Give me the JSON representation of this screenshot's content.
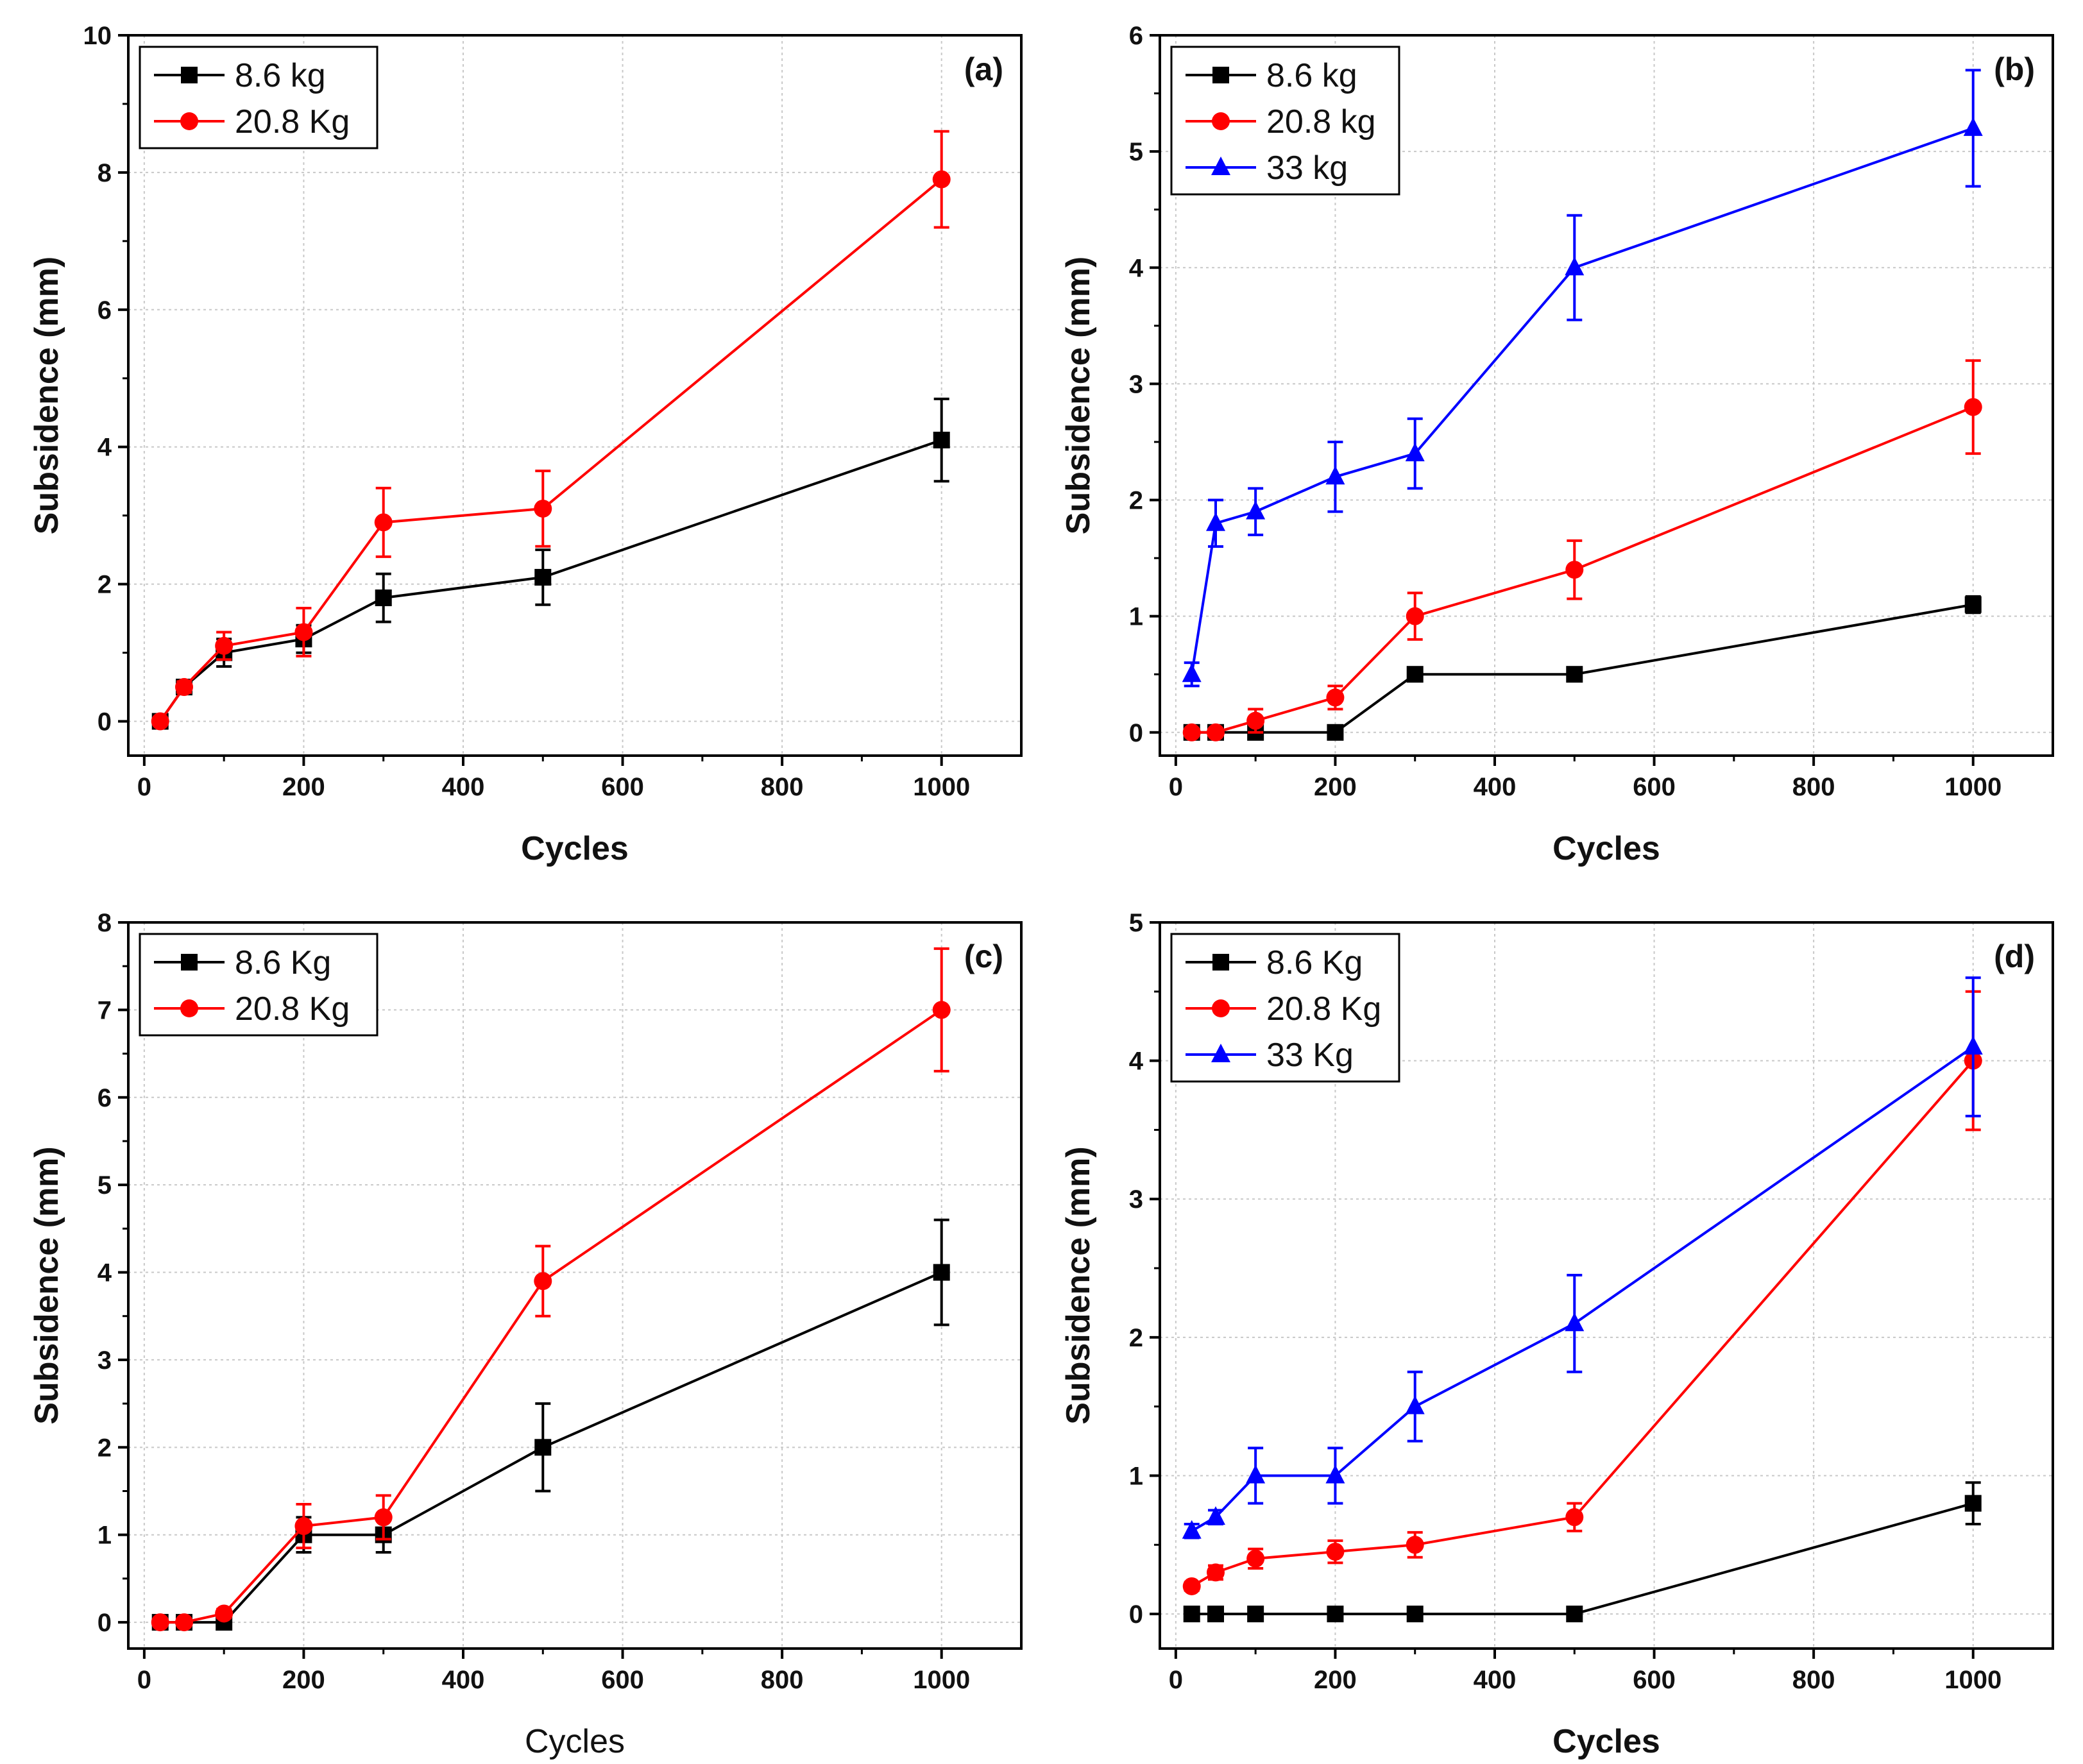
{
  "chart_data": [
    {
      "type": "line",
      "panel_label": "(a)",
      "xlabel": "Cycles",
      "ylabel": "Subsidence (mm)",
      "xlim": [
        -20,
        1100
      ],
      "ylim": [
        -0.5,
        10
      ],
      "xticks": [
        0,
        200,
        400,
        600,
        800,
        1000
      ],
      "yticks": [
        0,
        2,
        4,
        6,
        8,
        10
      ],
      "legend_position": "top-left",
      "series": [
        {
          "name": "8.6 kg",
          "color": "#000000",
          "marker": "square",
          "x": [
            20,
            50,
            100,
            200,
            300,
            500,
            1000
          ],
          "values": [
            0,
            0.5,
            1.0,
            1.2,
            1.8,
            2.1,
            4.1
          ],
          "errors": [
            0.05,
            0.08,
            0.2,
            0.2,
            0.35,
            0.4,
            0.6
          ]
        },
        {
          "name": "20.8 Kg",
          "color": "#ff0000",
          "marker": "circle",
          "x": [
            20,
            50,
            100,
            200,
            300,
            500,
            1000
          ],
          "values": [
            0,
            0.5,
            1.1,
            1.3,
            2.9,
            3.1,
            7.9
          ],
          "errors": [
            0.05,
            0.08,
            0.2,
            0.35,
            0.5,
            0.55,
            0.7
          ]
        }
      ]
    },
    {
      "type": "line",
      "panel_label": "(b)",
      "xlabel": "Cycles",
      "ylabel": "Subsidence (mm)",
      "xlim": [
        -20,
        1100
      ],
      "ylim": [
        -0.2,
        6
      ],
      "xticks": [
        0,
        200,
        400,
        600,
        800,
        1000
      ],
      "yticks": [
        0,
        1,
        2,
        3,
        4,
        5,
        6
      ],
      "legend_position": "top-left",
      "series": [
        {
          "name": "8.6 kg",
          "color": "#000000",
          "marker": "square",
          "x": [
            20,
            50,
            100,
            200,
            300,
            500,
            1000
          ],
          "values": [
            0,
            0,
            0,
            0,
            0.5,
            0.5,
            1.1
          ],
          "errors": [
            0.02,
            0.02,
            0.02,
            0.02,
            0.03,
            0.03,
            0.07
          ]
        },
        {
          "name": "20.8 kg",
          "color": "#ff0000",
          "marker": "circle",
          "x": [
            20,
            50,
            100,
            200,
            300,
            500,
            1000
          ],
          "values": [
            0,
            0,
            0.1,
            0.3,
            1.0,
            1.4,
            2.8
          ],
          "errors": [
            0.02,
            0.02,
            0.1,
            0.1,
            0.2,
            0.25,
            0.4
          ]
        },
        {
          "name": "33 kg",
          "color": "#0000ff",
          "marker": "triangle",
          "x": [
            20,
            50,
            100,
            200,
            300,
            500,
            1000
          ],
          "values": [
            0.5,
            1.8,
            1.9,
            2.2,
            2.4,
            4.0,
            5.2
          ],
          "errors": [
            0.1,
            0.2,
            0.2,
            0.3,
            0.3,
            0.45,
            0.5
          ]
        }
      ]
    },
    {
      "type": "line",
      "panel_label": "(c)",
      "xlabel": "Cycles",
      "ylabel": "Subsidence (mm)",
      "xlim": [
        -20,
        1100
      ],
      "ylim": [
        -0.3,
        8
      ],
      "xticks": [
        0,
        200,
        400,
        600,
        800,
        1000
      ],
      "yticks": [
        0,
        1,
        2,
        3,
        4,
        5,
        6,
        7,
        8
      ],
      "legend_position": "top-left",
      "series": [
        {
          "name": "8.6 Kg",
          "color": "#000000",
          "marker": "square",
          "x": [
            20,
            50,
            100,
            200,
            300,
            500,
            1000
          ],
          "values": [
            0,
            0,
            0,
            1.0,
            1.0,
            2.0,
            4.0
          ],
          "errors": [
            0.04,
            0.04,
            0.04,
            0.2,
            0.2,
            0.5,
            0.6
          ]
        },
        {
          "name": "20.8 Kg",
          "color": "#ff0000",
          "marker": "circle",
          "x": [
            20,
            50,
            100,
            200,
            300,
            500,
            1000
          ],
          "values": [
            0,
            0,
            0.1,
            1.1,
            1.2,
            3.9,
            7.0
          ],
          "errors": [
            0.04,
            0.04,
            0.05,
            0.25,
            0.25,
            0.4,
            0.7
          ]
        }
      ]
    },
    {
      "type": "line",
      "panel_label": "(d)",
      "xlabel": "Cycles",
      "ylabel": "Subsidence (mm)",
      "xlim": [
        -20,
        1100
      ],
      "ylim": [
        -0.25,
        5
      ],
      "xticks": [
        0,
        200,
        400,
        600,
        800,
        1000
      ],
      "yticks": [
        0,
        1,
        2,
        3,
        4,
        5
      ],
      "legend_position": "top-left",
      "series": [
        {
          "name": "8.6 Kg",
          "color": "#000000",
          "marker": "square",
          "x": [
            20,
            50,
            100,
            200,
            300,
            500,
            1000
          ],
          "values": [
            0,
            0,
            0,
            0,
            0,
            0,
            0.8
          ],
          "errors": [
            0.02,
            0.02,
            0.02,
            0.02,
            0.02,
            0.02,
            0.15
          ]
        },
        {
          "name": "20.8 Kg",
          "color": "#ff0000",
          "marker": "circle",
          "x": [
            20,
            50,
            100,
            200,
            300,
            500,
            1000
          ],
          "values": [
            0.2,
            0.3,
            0.4,
            0.45,
            0.5,
            0.7,
            4.0
          ],
          "errors": [
            0.03,
            0.05,
            0.07,
            0.08,
            0.09,
            0.1,
            0.5
          ]
        },
        {
          "name": "33 Kg",
          "color": "#0000ff",
          "marker": "triangle",
          "x": [
            20,
            50,
            100,
            200,
            300,
            500,
            1000
          ],
          "values": [
            0.6,
            0.7,
            1.0,
            1.0,
            1.5,
            2.1,
            4.1
          ],
          "errors": [
            0.05,
            0.05,
            0.2,
            0.2,
            0.25,
            0.35,
            0.5
          ]
        }
      ]
    }
  ]
}
